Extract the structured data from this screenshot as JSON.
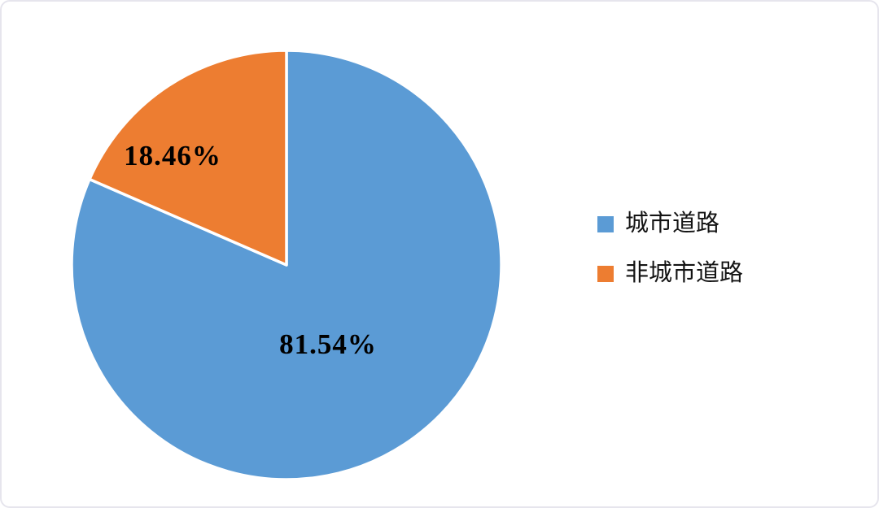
{
  "chart_data": {
    "type": "pie",
    "title": "",
    "series": [
      {
        "label": "城市道路",
        "value": 81.54,
        "data_label": "81.54%",
        "color": "#5B9BD5"
      },
      {
        "label": "非城市道路",
        "value": 18.46,
        "data_label": "18.46%",
        "color": "#ED7D31"
      }
    ],
    "start_angle_deg": 0,
    "direction": "clockwise",
    "legend_position": "right",
    "slice_border_color": "#FFFFFF",
    "data_label_color": "#000000"
  },
  "card": {
    "background": "#FFFFFF",
    "border_color": "#E6E5ED"
  }
}
